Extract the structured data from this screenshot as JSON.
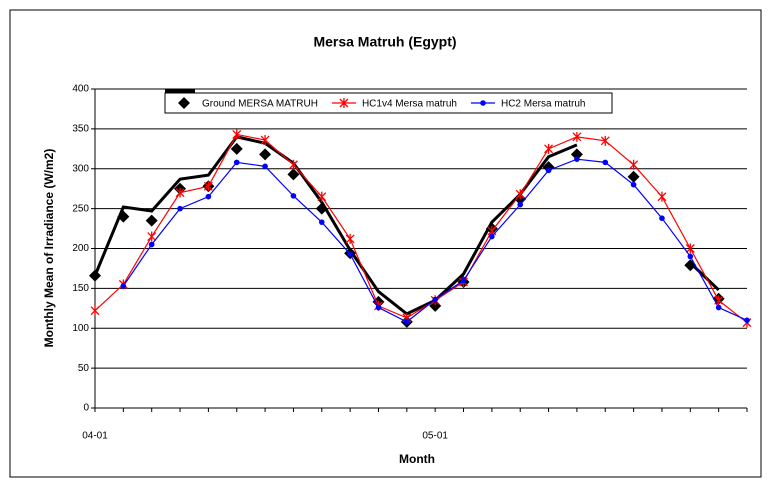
{
  "chart_data": {
    "type": "line",
    "title": "Mersa Matruh (Egypt)",
    "x_label": "Month",
    "y_label": "Monthly Mean of Irradiance (W/m2)",
    "categories": [
      "04-01",
      null,
      null,
      null,
      null,
      null,
      null,
      null,
      null,
      null,
      null,
      null,
      "05-01",
      null,
      null,
      null,
      null,
      null,
      null,
      null,
      null,
      null,
      null,
      null
    ],
    "ylim": [
      0,
      400
    ],
    "yticks": [
      0,
      50,
      100,
      150,
      200,
      250,
      300,
      350,
      400
    ],
    "grid": true,
    "series": [
      {
        "color": "#000000",
        "style": "line",
        "values": [
          166,
          252,
          247,
          287,
          292,
          340,
          332,
          307,
          258,
          198,
          146,
          118,
          135,
          168,
          233,
          268,
          315,
          330,
          null,
          null,
          null,
          182,
          148,
          null
        ]
      },
      {
        "name": "Ground MERSA MATRUH",
        "color": "#000000",
        "style": "diamond",
        "values": [
          166,
          240,
          235,
          275,
          278,
          325,
          318,
          293,
          250,
          194,
          133,
          108,
          128,
          158,
          225,
          262,
          302,
          318,
          null,
          290,
          null,
          179,
          137,
          null
        ]
      },
      {
        "name": "HC1v4 Mersa matruh",
        "color": "#ff0000",
        "style": "star",
        "values": [
          122,
          155,
          215,
          270,
          278,
          343,
          336,
          305,
          265,
          212,
          128,
          113,
          135,
          158,
          222,
          268,
          325,
          340,
          335,
          305,
          265,
          200,
          135,
          107
        ]
      },
      {
        "name": "HC2 Mersa matruh",
        "color": "#0000ff",
        "style": "dot",
        "values": [
          null,
          153,
          205,
          250,
          265,
          308,
          303,
          266,
          233,
          193,
          126,
          108,
          136,
          160,
          215,
          255,
          298,
          312,
          308,
          280,
          238,
          190,
          126,
          110
        ]
      }
    ]
  }
}
